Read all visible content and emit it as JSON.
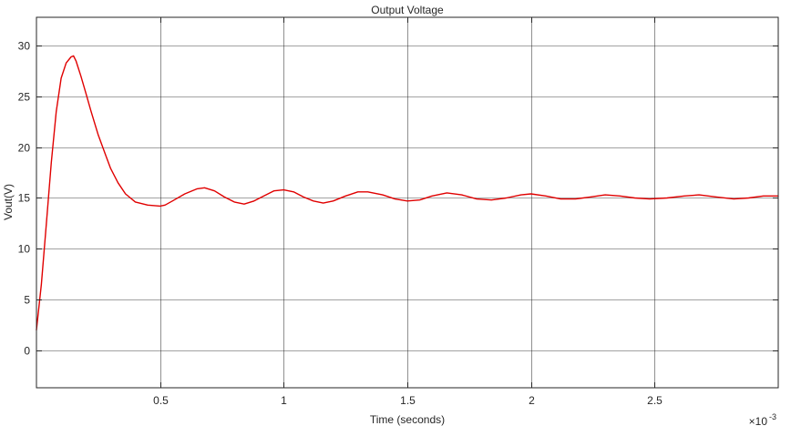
{
  "chart_data": {
    "type": "line",
    "title": "Output Voltage",
    "xlabel": "Time (seconds)",
    "ylabel": "Vout(V)",
    "x_multiplier_label": "×10",
    "x_multiplier_exponent": "-3",
    "xlim": [
      0,
      3
    ],
    "ylim": [
      -3.7,
      32.8
    ],
    "x_scale": "linear",
    "y_scale": "linear",
    "grid": true,
    "legend": "none",
    "x_ticks": [
      0.5,
      1,
      1.5,
      2,
      2.5
    ],
    "x_tick_labels": [
      "0.5",
      "1",
      "1.5",
      "2",
      "2.5"
    ],
    "y_ticks": [
      0,
      5,
      10,
      15,
      20,
      25,
      30
    ],
    "y_tick_labels": [
      "0",
      "5",
      "10",
      "15",
      "20",
      "25",
      "30"
    ],
    "colors": {
      "line": "#e00000",
      "grid": "#262626",
      "axes": "#262626",
      "background": "#ffffff"
    },
    "series": [
      {
        "x": [
          0,
          0.02,
          0.04,
          0.06,
          0.08,
          0.1,
          0.12,
          0.14,
          0.15,
          0.16,
          0.18,
          0.2,
          0.22,
          0.25,
          0.28,
          0.3,
          0.33,
          0.36,
          0.4,
          0.45,
          0.5,
          0.52,
          0.55,
          0.6,
          0.65,
          0.68,
          0.72,
          0.76,
          0.8,
          0.84,
          0.88,
          0.92,
          0.96,
          1.0,
          1.04,
          1.08,
          1.12,
          1.16,
          1.2,
          1.25,
          1.3,
          1.34,
          1.4,
          1.45,
          1.5,
          1.55,
          1.6,
          1.66,
          1.72,
          1.78,
          1.84,
          1.9,
          1.96,
          2.0,
          2.06,
          2.12,
          2.18,
          2.24,
          2.3,
          2.36,
          2.42,
          2.48,
          2.55,
          2.62,
          2.68,
          2.75,
          2.82,
          2.88,
          2.94,
          3.0
        ],
        "y": [
          2.0,
          6.5,
          12.5,
          18.5,
          23.5,
          26.8,
          28.3,
          28.9,
          29.0,
          28.5,
          27.0,
          25.3,
          23.6,
          21.2,
          19.2,
          17.9,
          16.5,
          15.4,
          14.6,
          14.3,
          14.2,
          14.3,
          14.7,
          15.4,
          15.9,
          16.0,
          15.7,
          15.1,
          14.6,
          14.4,
          14.7,
          15.2,
          15.7,
          15.8,
          15.6,
          15.1,
          14.7,
          14.5,
          14.7,
          15.2,
          15.6,
          15.6,
          15.3,
          14.9,
          14.7,
          14.8,
          15.2,
          15.5,
          15.3,
          14.9,
          14.8,
          15.0,
          15.3,
          15.4,
          15.2,
          14.9,
          14.9,
          15.1,
          15.3,
          15.2,
          15.0,
          14.9,
          15.0,
          15.2,
          15.3,
          15.1,
          14.9,
          15.0,
          15.2,
          15.2
        ]
      }
    ]
  }
}
